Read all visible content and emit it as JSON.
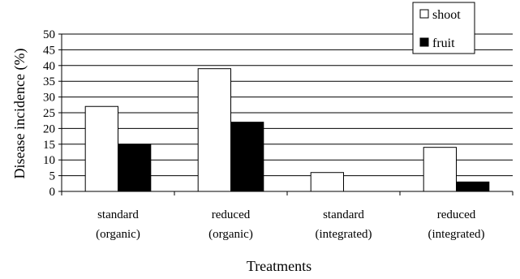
{
  "chart_data": {
    "type": "bar",
    "xlabel": "Treatments",
    "ylabel": "Disease incidence (%)",
    "ylim": [
      0,
      50
    ],
    "yticks": [
      0,
      5,
      10,
      15,
      20,
      25,
      30,
      35,
      40,
      45,
      50
    ],
    "grid": true,
    "legend_position": "top-right",
    "categories": [
      [
        "standard",
        "(organic)"
      ],
      [
        "reduced",
        "(organic)"
      ],
      [
        "standard",
        "(integrated)"
      ],
      [
        "reduced",
        "(integrated)"
      ]
    ],
    "series": [
      {
        "name": "shoot",
        "color": "#ffffff",
        "values": [
          27,
          39,
          6,
          14
        ]
      },
      {
        "name": "fruit",
        "color": "#000000",
        "values": [
          15,
          22,
          0,
          3
        ]
      }
    ]
  }
}
